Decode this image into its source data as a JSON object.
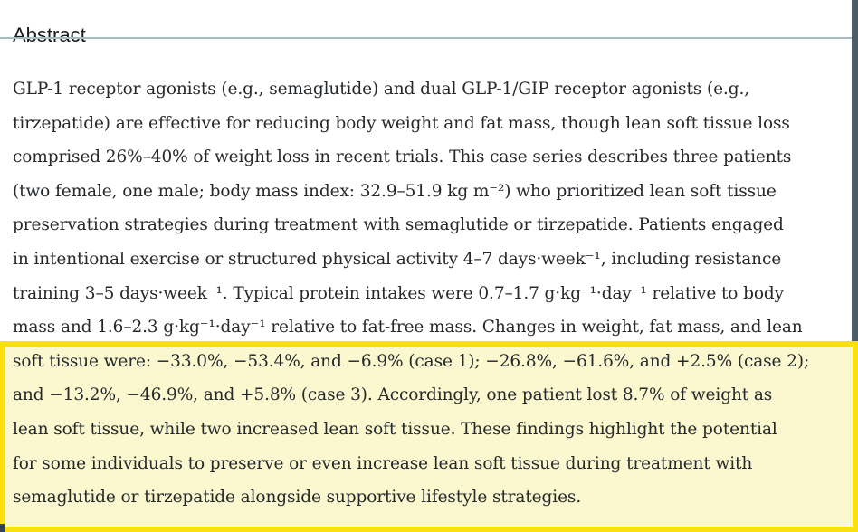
{
  "heading": {
    "title": "Abstract"
  },
  "abstract": {
    "lines": [
      "GLP-1 receptor agonists (e.g., semaglutide) and dual GLP-1/GIP receptor agonists (e.g.,",
      "tirzepatide) are effective for reducing body weight and fat mass, though lean soft tissue loss",
      "comprised 26%–40% of weight loss in recent trials. This case series describes three patients",
      "(two female, one male; body mass index: 32.9–51.9 kg m⁻²) who prioritized lean soft tissue",
      "preservation strategies during treatment with semaglutide or tirzepatide. Patients engaged",
      "in intentional exercise or structured physical activity 4–7 days·week⁻¹, including resistance",
      "training 3–5 days·week⁻¹. Typical protein intakes were 0.7–1.7 g·kg⁻¹·day⁻¹ relative to body",
      "mass and 1.6–2.3 g·kg⁻¹·day⁻¹ relative to fat-free mass. Changes in weight, fat mass, and lean",
      "soft tissue were: −33.0%, −53.4%, and −6.9% (case 1); −26.8%, −61.6%, and +2.5% (case 2);",
      "and −13.2%, −46.9%, and +5.8% (case 3). Accordingly, one patient lost 8.7% of weight as",
      "lean soft tissue, while two increased lean soft tissue. These findings highlight the potential",
      "for some individuals to preserve or even increase lean soft tissue during treatment with",
      "semaglutide or tirzepatide alongside supportive lifestyle strategies."
    ]
  },
  "highlight": {
    "border_color": "#F8E013",
    "fill_color": "#FBF7CF"
  },
  "colors": {
    "background": "#FFFFFF",
    "heading_text": "#17191B",
    "body_text": "#26292C",
    "divider": "#A6BBC3",
    "screen_edge_right": "#4A5B66",
    "screen_edge_bottom": "#33435C"
  }
}
